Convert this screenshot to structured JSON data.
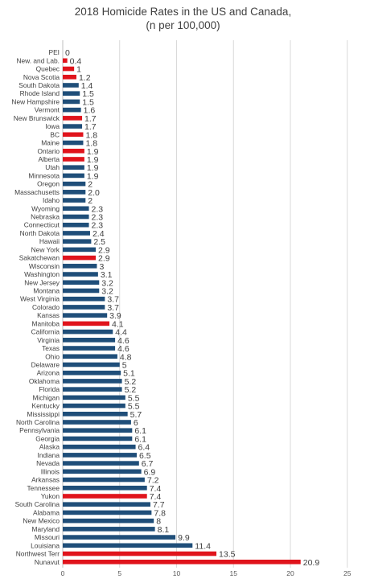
{
  "chart_data": {
    "type": "bar",
    "orientation": "horizontal",
    "title": "2018 Homicide Rates in the US and Canada,",
    "subtitle": "(n per 100,000)",
    "xlabel": "",
    "ylabel": "",
    "xlim": [
      0,
      25
    ],
    "xticks": [
      "0",
      "5",
      "10",
      "15",
      "20",
      "25"
    ],
    "grid": true,
    "legend": "none",
    "colors": {
      "us": "#1f4e79",
      "canada": "#e0141c"
    },
    "categories": [
      "PEI",
      "New. and Lab.",
      "Quebec",
      "Nova Scotia",
      "South Dakota",
      "Rhode Island",
      "New Hampshire",
      "Vermont",
      "New Brunswick",
      "Iowa",
      "BC",
      "Maine",
      "Ontario",
      "Alberta",
      "Utah",
      "Minnesota",
      "Oregon",
      "Massachusetts",
      "Idaho",
      "Wyoming",
      "Nebraska",
      "Connecticut",
      "North Dakota",
      "Hawaii",
      "New York",
      "Sakatchewan",
      "Wisconsin",
      "Washington",
      "New Jersey",
      "Montana",
      "West Virginia",
      "Colorado",
      "Kansas",
      "Manitoba",
      "California",
      "Virginia",
      "Texas",
      "Ohio",
      "Delaware",
      "Arizona",
      "Oklahoma",
      "Florida",
      "Michigan",
      "Kentucky",
      "Mississippi",
      "North Carolina",
      "Pennsylvania",
      "Georgia",
      "Alaska",
      "Indiana",
      "Nevada",
      "Illinois",
      "Arkansas",
      "Tennessee",
      "Yukon",
      "South Carolina",
      "Alabama",
      "New Mexico",
      "Maryland",
      "Missouri",
      "Louisiana",
      "Northwest Terr",
      "Nunavut"
    ],
    "values": [
      0,
      0.4,
      1,
      1.2,
      1.4,
      1.5,
      1.5,
      1.6,
      1.7,
      1.7,
      1.8,
      1.8,
      1.9,
      1.9,
      1.9,
      1.9,
      2,
      2.0,
      2,
      2.3,
      2.3,
      2.3,
      2.4,
      2.5,
      2.9,
      2.9,
      3,
      3.1,
      3.2,
      3.2,
      3.7,
      3.7,
      3.9,
      4.1,
      4.4,
      4.6,
      4.6,
      4.8,
      5,
      5.1,
      5.2,
      5.2,
      5.5,
      5.5,
      5.7,
      6,
      6.1,
      6.1,
      6.4,
      6.5,
      6.7,
      6.9,
      7.2,
      7.4,
      7.4,
      7.7,
      7.8,
      8,
      8.1,
      9.9,
      11.4,
      13.5,
      20.9
    ],
    "value_labels": [
      "0",
      "0.4",
      "1",
      "1.2",
      "1.4",
      "1.5",
      "1.5",
      "1.6",
      "1.7",
      "1.7",
      "1.8",
      "1.8",
      "1.9",
      "1.9",
      "1.9",
      "1.9",
      "2",
      "2.0",
      "2",
      "2.3",
      "2.3",
      "2.3",
      "2.4",
      "2.5",
      "2.9",
      "2.9",
      "3",
      "3.1",
      "3.2",
      "3.2",
      "3.7",
      "3.7",
      "3.9",
      "4.1",
      "4.4",
      "4.6",
      "4.6",
      "4.8",
      "5",
      "5.1",
      "5.2",
      "5.2",
      "5.5",
      "5.5",
      "5.7",
      "6",
      "6.1",
      "6.1",
      "6.4",
      "6.5",
      "6.7",
      "6.9",
      "7.2",
      "7.4",
      "7.4",
      "7.7",
      "7.8",
      "8",
      "8.1",
      "9.9",
      "11.4",
      "13.5",
      "20.9"
    ],
    "canadian": [
      true,
      true,
      true,
      true,
      false,
      false,
      false,
      false,
      true,
      false,
      true,
      false,
      true,
      true,
      false,
      false,
      false,
      false,
      false,
      false,
      false,
      false,
      false,
      false,
      false,
      true,
      false,
      false,
      false,
      false,
      false,
      false,
      false,
      true,
      false,
      false,
      false,
      false,
      false,
      false,
      false,
      false,
      false,
      false,
      false,
      false,
      false,
      false,
      false,
      false,
      false,
      false,
      false,
      false,
      true,
      false,
      false,
      false,
      false,
      false,
      false,
      true,
      true
    ]
  }
}
